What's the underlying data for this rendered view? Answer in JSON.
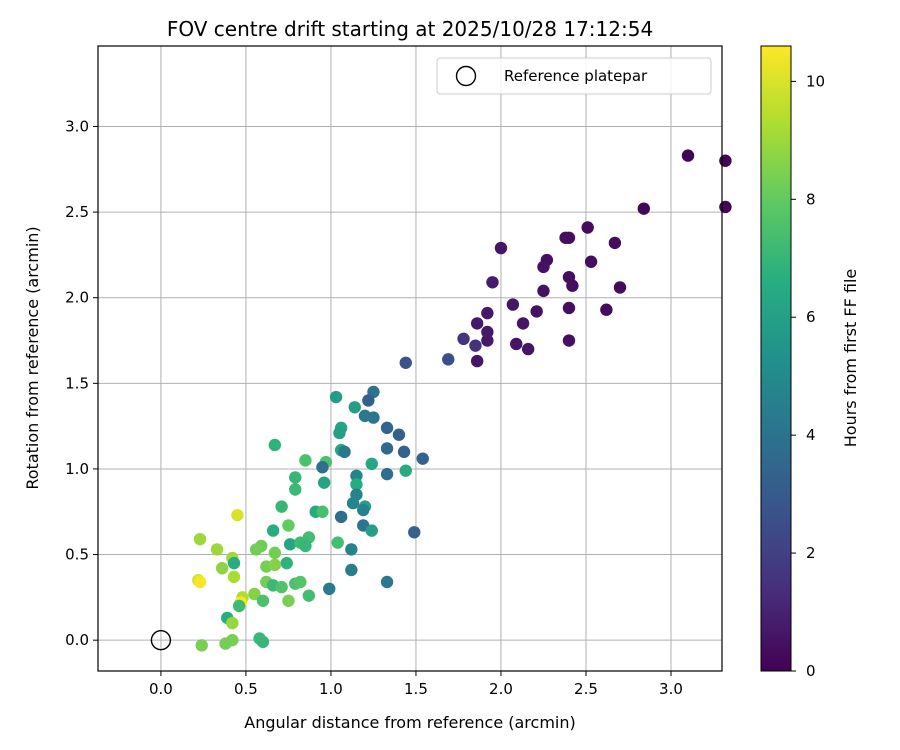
{
  "chart_data": {
    "type": "scatter",
    "title": "FOV centre drift starting at 2025/10/28 17:12:54",
    "xlabel": "Angular distance from reference (arcmin)",
    "ylabel": "Rotation from reference (arcmin)",
    "xlim": [
      -0.37,
      3.3
    ],
    "ylim": [
      -0.18,
      3.47
    ],
    "xticks": [
      "0.0",
      "0.5",
      "1.0",
      "1.5",
      "2.0",
      "2.5",
      "3.0"
    ],
    "yticks": [
      "0.0",
      "0.5",
      "1.0",
      "1.5",
      "2.0",
      "2.5",
      "3.0"
    ],
    "grid": true,
    "legend": {
      "position": "top-right",
      "entries": [
        "Reference platepar"
      ]
    },
    "reference_point": {
      "x": 0.0,
      "y": 0.0
    },
    "colorbar": {
      "label": "Hours from first FF file",
      "colormap": "viridis",
      "range": [
        0,
        10.6
      ],
      "ticks": [
        "0",
        "2",
        "4",
        "6",
        "8",
        "10"
      ]
    },
    "points": [
      {
        "x": 3.1,
        "y": 2.83,
        "c": 0.1
      },
      {
        "x": 3.32,
        "y": 2.8,
        "c": 0.1
      },
      {
        "x": 3.32,
        "y": 2.53,
        "c": 0.1
      },
      {
        "x": 2.84,
        "y": 2.52,
        "c": 0.2
      },
      {
        "x": 2.51,
        "y": 2.41,
        "c": 0.3
      },
      {
        "x": 2.67,
        "y": 2.32,
        "c": 0.3
      },
      {
        "x": 2.4,
        "y": 2.35,
        "c": 0.4
      },
      {
        "x": 2.38,
        "y": 2.35,
        "c": 0.4
      },
      {
        "x": 2.27,
        "y": 2.22,
        "c": 0.4
      },
      {
        "x": 2.25,
        "y": 2.18,
        "c": 0.5
      },
      {
        "x": 2.53,
        "y": 2.21,
        "c": 0.4
      },
      {
        "x": 2.0,
        "y": 2.29,
        "c": 0.6
      },
      {
        "x": 1.95,
        "y": 2.09,
        "c": 0.8
      },
      {
        "x": 2.4,
        "y": 2.12,
        "c": 0.4
      },
      {
        "x": 2.42,
        "y": 2.07,
        "c": 0.4
      },
      {
        "x": 2.7,
        "y": 2.06,
        "c": 0.3
      },
      {
        "x": 2.25,
        "y": 2.04,
        "c": 0.5
      },
      {
        "x": 2.07,
        "y": 1.96,
        "c": 0.6
      },
      {
        "x": 2.62,
        "y": 1.93,
        "c": 0.3
      },
      {
        "x": 2.4,
        "y": 1.94,
        "c": 0.4
      },
      {
        "x": 2.21,
        "y": 1.92,
        "c": 0.5
      },
      {
        "x": 1.92,
        "y": 1.91,
        "c": 0.7
      },
      {
        "x": 1.86,
        "y": 1.85,
        "c": 0.7
      },
      {
        "x": 2.13,
        "y": 1.85,
        "c": 0.6
      },
      {
        "x": 1.92,
        "y": 1.8,
        "c": 0.7
      },
      {
        "x": 1.78,
        "y": 1.76,
        "c": 1.6
      },
      {
        "x": 1.92,
        "y": 1.75,
        "c": 0.7
      },
      {
        "x": 2.4,
        "y": 1.75,
        "c": 0.4
      },
      {
        "x": 2.09,
        "y": 1.73,
        "c": 0.6
      },
      {
        "x": 1.85,
        "y": 1.72,
        "c": 1.5
      },
      {
        "x": 2.16,
        "y": 1.7,
        "c": 0.6
      },
      {
        "x": 1.69,
        "y": 1.64,
        "c": 2.5
      },
      {
        "x": 1.86,
        "y": 1.63,
        "c": 0.6
      },
      {
        "x": 1.44,
        "y": 1.62,
        "c": 2.7
      },
      {
        "x": 1.25,
        "y": 1.45,
        "c": 4.0
      },
      {
        "x": 1.22,
        "y": 1.4,
        "c": 3.2
      },
      {
        "x": 1.03,
        "y": 1.42,
        "c": 5.8
      },
      {
        "x": 1.14,
        "y": 1.36,
        "c": 5.9
      },
      {
        "x": 1.25,
        "y": 1.3,
        "c": 4.1
      },
      {
        "x": 1.2,
        "y": 1.31,
        "c": 4.2
      },
      {
        "x": 1.33,
        "y": 1.24,
        "c": 3.4
      },
      {
        "x": 1.06,
        "y": 1.24,
        "c": 6.1
      },
      {
        "x": 1.05,
        "y": 1.21,
        "c": 5.9
      },
      {
        "x": 1.4,
        "y": 1.2,
        "c": 3.3
      },
      {
        "x": 0.67,
        "y": 1.14,
        "c": 6.8
      },
      {
        "x": 1.33,
        "y": 1.12,
        "c": 3.6
      },
      {
        "x": 1.06,
        "y": 1.11,
        "c": 6.2
      },
      {
        "x": 1.08,
        "y": 1.1,
        "c": 4.2
      },
      {
        "x": 1.43,
        "y": 1.1,
        "c": 3.3
      },
      {
        "x": 1.54,
        "y": 1.06,
        "c": 3.4
      },
      {
        "x": 0.85,
        "y": 1.05,
        "c": 7.5
      },
      {
        "x": 1.24,
        "y": 1.03,
        "c": 6.3
      },
      {
        "x": 0.97,
        "y": 1.04,
        "c": 7.5
      },
      {
        "x": 0.95,
        "y": 1.01,
        "c": 3.9
      },
      {
        "x": 1.44,
        "y": 0.99,
        "c": 6.4
      },
      {
        "x": 1.33,
        "y": 0.97,
        "c": 3.8
      },
      {
        "x": 1.15,
        "y": 0.96,
        "c": 4.8
      },
      {
        "x": 0.79,
        "y": 0.95,
        "c": 7.0
      },
      {
        "x": 0.96,
        "y": 0.92,
        "c": 6.1
      },
      {
        "x": 1.15,
        "y": 0.91,
        "c": 6.5
      },
      {
        "x": 0.79,
        "y": 0.88,
        "c": 7.1
      },
      {
        "x": 1.15,
        "y": 0.85,
        "c": 4.7
      },
      {
        "x": 1.13,
        "y": 0.8,
        "c": 4.8
      },
      {
        "x": 1.2,
        "y": 0.78,
        "c": 6.0
      },
      {
        "x": 1.19,
        "y": 0.76,
        "c": 4.6
      },
      {
        "x": 0.91,
        "y": 0.75,
        "c": 6.4
      },
      {
        "x": 0.95,
        "y": 0.75,
        "c": 7.4
      },
      {
        "x": 0.71,
        "y": 0.78,
        "c": 7.0
      },
      {
        "x": 0.45,
        "y": 0.73,
        "c": 10.0
      },
      {
        "x": 1.06,
        "y": 0.72,
        "c": 3.9
      },
      {
        "x": 0.75,
        "y": 0.67,
        "c": 8.0
      },
      {
        "x": 1.19,
        "y": 0.67,
        "c": 4.1
      },
      {
        "x": 0.66,
        "y": 0.64,
        "c": 6.6
      },
      {
        "x": 1.24,
        "y": 0.64,
        "c": 5.9
      },
      {
        "x": 1.49,
        "y": 0.63,
        "c": 3.3
      },
      {
        "x": 0.23,
        "y": 0.59,
        "c": 9.0
      },
      {
        "x": 0.87,
        "y": 0.6,
        "c": 7.3
      },
      {
        "x": 0.76,
        "y": 0.56,
        "c": 6.2
      },
      {
        "x": 0.82,
        "y": 0.57,
        "c": 7.2
      },
      {
        "x": 1.04,
        "y": 0.57,
        "c": 7.3
      },
      {
        "x": 0.85,
        "y": 0.55,
        "c": 7.0
      },
      {
        "x": 0.59,
        "y": 0.55,
        "c": 8.2
      },
      {
        "x": 0.56,
        "y": 0.53,
        "c": 8.3
      },
      {
        "x": 0.33,
        "y": 0.53,
        "c": 9.0
      },
      {
        "x": 1.12,
        "y": 0.53,
        "c": 4.7
      },
      {
        "x": 0.67,
        "y": 0.51,
        "c": 8.3
      },
      {
        "x": 0.42,
        "y": 0.48,
        "c": 9.1
      },
      {
        "x": 0.43,
        "y": 0.45,
        "c": 6.6
      },
      {
        "x": 0.74,
        "y": 0.45,
        "c": 6.8
      },
      {
        "x": 0.62,
        "y": 0.43,
        "c": 8.3
      },
      {
        "x": 0.67,
        "y": 0.44,
        "c": 8.6
      },
      {
        "x": 0.36,
        "y": 0.42,
        "c": 8.7
      },
      {
        "x": 1.12,
        "y": 0.41,
        "c": 4.5
      },
      {
        "x": 0.43,
        "y": 0.37,
        "c": 9.2
      },
      {
        "x": 0.22,
        "y": 0.35,
        "c": 9.9
      },
      {
        "x": 0.23,
        "y": 0.34,
        "c": 10.5
      },
      {
        "x": 0.62,
        "y": 0.34,
        "c": 8.3
      },
      {
        "x": 0.79,
        "y": 0.33,
        "c": 7.5
      },
      {
        "x": 0.82,
        "y": 0.34,
        "c": 7.7
      },
      {
        "x": 1.33,
        "y": 0.34,
        "c": 4.2
      },
      {
        "x": 0.66,
        "y": 0.32,
        "c": 7.1
      },
      {
        "x": 0.71,
        "y": 0.31,
        "c": 7.6
      },
      {
        "x": 0.99,
        "y": 0.3,
        "c": 4.3
      },
      {
        "x": 0.55,
        "y": 0.27,
        "c": 8.6
      },
      {
        "x": 0.87,
        "y": 0.26,
        "c": 7.3
      },
      {
        "x": 0.48,
        "y": 0.25,
        "c": 9.3
      },
      {
        "x": 0.47,
        "y": 0.22,
        "c": 10.5
      },
      {
        "x": 0.6,
        "y": 0.23,
        "c": 7.5
      },
      {
        "x": 0.75,
        "y": 0.23,
        "c": 8.4
      },
      {
        "x": 0.46,
        "y": 0.2,
        "c": 7.2
      },
      {
        "x": 0.39,
        "y": 0.13,
        "c": 6.6
      },
      {
        "x": 0.42,
        "y": 0.1,
        "c": 8.9
      },
      {
        "x": 0.42,
        "y": 0.0,
        "c": 8.4
      },
      {
        "x": 0.58,
        "y": 0.01,
        "c": 7.1
      },
      {
        "x": 0.6,
        "y": -0.01,
        "c": 7.0
      },
      {
        "x": 0.38,
        "y": -0.02,
        "c": 8.3
      },
      {
        "x": 0.24,
        "y": -0.03,
        "c": 8.4
      }
    ]
  }
}
